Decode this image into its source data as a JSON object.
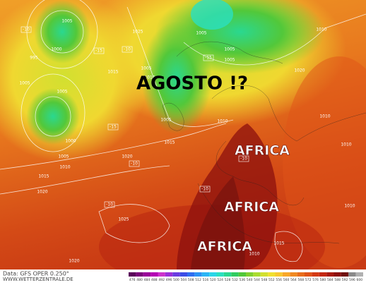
{
  "title": "AGOSTO !?",
  "annotations": [
    "AFRICA",
    "AFRICA",
    "AFRICA"
  ],
  "isobar_labels": [
    1005,
    1000,
    995,
    1005,
    1005,
    1000,
    1005,
    1010,
    1015,
    1020,
    1025,
    1015,
    1005,
    1010,
    1005,
    1005,
    1005,
    1010,
    1020,
    1010,
    1005,
    1015,
    1020,
    1025,
    1010,
    1015,
    1010,
    1020,
    1010,
    1010
  ],
  "field_labels": [
    "-10",
    "-15",
    "-10",
    "-15",
    "-15",
    "-10",
    "-10",
    "-10",
    "-10"
  ],
  "footer": {
    "source": "Data: GFS OPER 0.250°",
    "website": "WWW.WETTERZENTRALE.DE"
  },
  "colorbar": {
    "labels": [
      476,
      480,
      484,
      488,
      492,
      496,
      500,
      504,
      508,
      512,
      516,
      520,
      524,
      528,
      532,
      536,
      540,
      544,
      548,
      552,
      556,
      560,
      564,
      568,
      572,
      576,
      580,
      584,
      588,
      592,
      596,
      600
    ],
    "colors": [
      "#5a005a",
      "#7a007a",
      "#9a009a",
      "#b400b4",
      "#cc33cc",
      "#9b30d9",
      "#6a3ce0",
      "#3c4de6",
      "#2f6ef0",
      "#2a92f5",
      "#2ab5f5",
      "#2ad5e8",
      "#2ae0c0",
      "#2ad890",
      "#30cc60",
      "#52c83a",
      "#80d030",
      "#aadc30",
      "#d2e030",
      "#f0e030",
      "#f8c830",
      "#f8a828",
      "#f08a22",
      "#e86e1c",
      "#e05418",
      "#d43a14",
      "#c42812",
      "#a81a10",
      "#8c100e",
      "#70100e",
      "#8a8a8a",
      "#b0b0b0"
    ]
  }
}
